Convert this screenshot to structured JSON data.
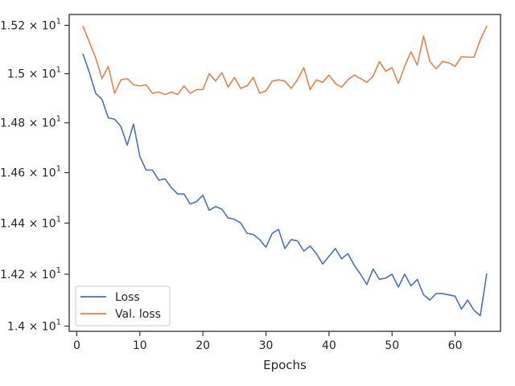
{
  "chart_data": {
    "type": "line",
    "title": "",
    "xlabel": "Epochs",
    "ylabel": "",
    "y_scale": "log",
    "grid": false,
    "legend_position": "lower-left",
    "xlim": [
      -1.2,
      67.2
    ],
    "ylim": [
      13.98,
      15.245
    ],
    "x_ticks": [
      0,
      10,
      20,
      30,
      40,
      50,
      60
    ],
    "x_tick_labels": [
      "0",
      "10",
      "20",
      "30",
      "40",
      "50",
      "60"
    ],
    "y_ticks": [
      14.0,
      14.2,
      14.4,
      14.6,
      14.8,
      15.0,
      15.2
    ],
    "y_tick_labels": [
      {
        "mant": "1.4",
        "base": "10",
        "exp": "1"
      },
      {
        "mant": "1.42",
        "base": "10",
        "exp": "1"
      },
      {
        "mant": "1.44",
        "base": "10",
        "exp": "1"
      },
      {
        "mant": "1.46",
        "base": "10",
        "exp": "1"
      },
      {
        "mant": "1.48",
        "base": "10",
        "exp": "1"
      },
      {
        "mant": "1.5",
        "base": "10",
        "exp": "1"
      },
      {
        "mant": "1.52",
        "base": "10",
        "exp": "1"
      }
    ],
    "x": [
      1,
      2,
      3,
      4,
      5,
      6,
      7,
      8,
      9,
      10,
      11,
      12,
      13,
      14,
      15,
      16,
      17,
      18,
      19,
      20,
      21,
      22,
      23,
      24,
      25,
      26,
      27,
      28,
      29,
      30,
      31,
      32,
      33,
      34,
      35,
      36,
      37,
      38,
      39,
      40,
      41,
      42,
      43,
      44,
      45,
      46,
      47,
      48,
      49,
      50,
      51,
      52,
      53,
      54,
      55,
      56,
      57,
      58,
      59,
      60,
      61,
      62,
      63,
      64,
      65
    ],
    "series": [
      {
        "name": "Loss",
        "color": "#4c72b0",
        "values": [
          15.08,
          15.005,
          14.92,
          14.895,
          14.82,
          14.815,
          14.785,
          14.71,
          14.795,
          14.665,
          14.61,
          14.61,
          14.57,
          14.575,
          14.54,
          14.515,
          14.515,
          14.475,
          14.485,
          14.51,
          14.45,
          14.465,
          14.455,
          14.42,
          14.415,
          14.4,
          14.36,
          14.355,
          14.335,
          14.305,
          14.36,
          14.375,
          14.3,
          14.335,
          14.33,
          14.29,
          14.31,
          14.28,
          14.24,
          14.27,
          14.3,
          14.26,
          14.28,
          14.235,
          14.2,
          14.16,
          14.22,
          14.18,
          14.185,
          14.2,
          14.15,
          14.2,
          14.155,
          14.18,
          14.12,
          14.1,
          14.125,
          14.125,
          14.12,
          14.115,
          14.065,
          14.1,
          14.06,
          14.04,
          14.2
        ]
      },
      {
        "name": "Val. loss",
        "color": "#dd8452",
        "values": [
          15.195,
          15.13,
          15.065,
          14.98,
          15.03,
          14.92,
          14.975,
          14.98,
          14.955,
          14.95,
          14.955,
          14.92,
          14.925,
          14.915,
          14.925,
          14.915,
          14.95,
          14.92,
          14.935,
          14.935,
          15.0,
          14.97,
          15.005,
          14.945,
          14.985,
          14.94,
          14.95,
          14.985,
          14.92,
          14.93,
          14.97,
          14.975,
          14.97,
          14.94,
          14.975,
          15.025,
          14.935,
          14.975,
          14.965,
          14.995,
          14.96,
          14.945,
          14.975,
          14.995,
          14.98,
          14.965,
          14.99,
          15.05,
          15.01,
          15.025,
          14.96,
          15.03,
          15.09,
          15.035,
          15.155,
          15.05,
          15.02,
          15.05,
          15.045,
          15.03,
          15.07,
          15.068,
          15.068,
          15.14,
          15.195
        ]
      }
    ]
  }
}
